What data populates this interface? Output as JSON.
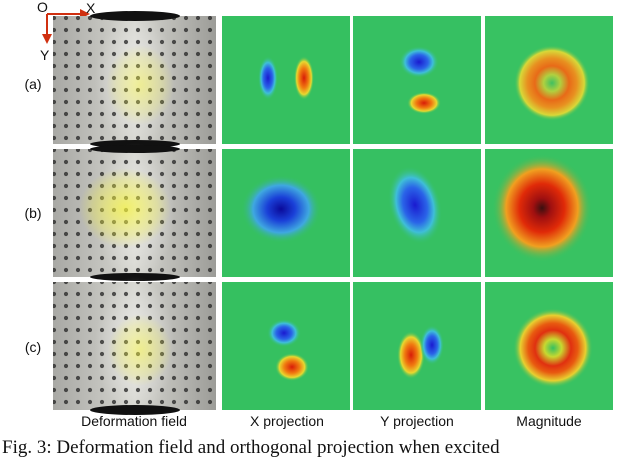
{
  "figure": {
    "axes": {
      "origin": "O",
      "x": "X",
      "y": "Y"
    },
    "rows": [
      {
        "label": "(a)"
      },
      {
        "label": "(b)"
      },
      {
        "label": "(c)"
      }
    ],
    "columns": [
      "Deformation field",
      "X projection",
      "Y projection",
      "Magnitude"
    ],
    "caption": "Fig. 3: Deformation field and orthogonal projection when excited"
  },
  "colors": {
    "background_green": "#2fbf52",
    "negative_blue": "#1a3fd6",
    "positive_red": "#d82a10",
    "arrow_yellow": "#f0f030",
    "axis_red": "#d03010",
    "axis_blue": "#1030d0"
  }
}
